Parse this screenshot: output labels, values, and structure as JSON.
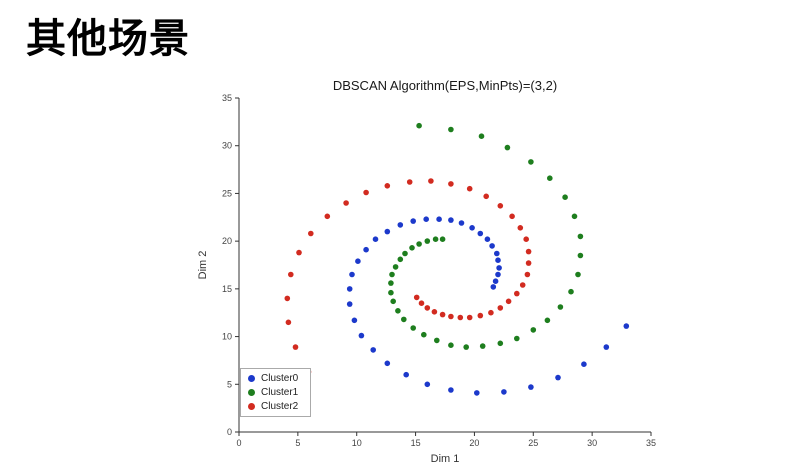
{
  "slide": {
    "title": "其他场景"
  },
  "chart_data": {
    "type": "scatter",
    "title": "DBSCAN Algorithm(EPS,MinPts)=(3,2)",
    "xlabel": "Dim 1",
    "ylabel": "Dim 2",
    "xlim": [
      0,
      35
    ],
    "ylim": [
      0,
      35
    ],
    "x_ticks": [
      0,
      5,
      10,
      15,
      20,
      25,
      30,
      35
    ],
    "y_ticks": [
      0,
      5,
      10,
      15,
      20,
      25,
      30,
      35
    ],
    "grid": false,
    "legend_position": "lower left",
    "series": [
      {
        "name": "Cluster0",
        "color": "#1c39cb",
        "points": [
          [
            21.6,
            15.2
          ],
          [
            21.8,
            15.8
          ],
          [
            22.0,
            16.5
          ],
          [
            22.1,
            17.2
          ],
          [
            22.0,
            18.0
          ],
          [
            21.9,
            18.7
          ],
          [
            21.5,
            19.5
          ],
          [
            21.1,
            20.2
          ],
          [
            20.5,
            20.8
          ],
          [
            19.8,
            21.4
          ],
          [
            18.9,
            21.9
          ],
          [
            18.0,
            22.2
          ],
          [
            17.0,
            22.3
          ],
          [
            15.9,
            22.3
          ],
          [
            14.8,
            22.1
          ],
          [
            13.7,
            21.7
          ],
          [
            12.6,
            21.0
          ],
          [
            11.6,
            20.2
          ],
          [
            10.8,
            19.1
          ],
          [
            10.1,
            17.9
          ],
          [
            9.6,
            16.5
          ],
          [
            9.4,
            15.0
          ],
          [
            9.4,
            13.4
          ],
          [
            9.8,
            11.7
          ],
          [
            10.4,
            10.1
          ],
          [
            11.4,
            8.6
          ],
          [
            12.6,
            7.2
          ],
          [
            14.2,
            6.0
          ],
          [
            16.0,
            5.0
          ],
          [
            18.0,
            4.4
          ],
          [
            20.2,
            4.1
          ],
          [
            22.5,
            4.2
          ],
          [
            24.8,
            4.7
          ],
          [
            27.1,
            5.7
          ],
          [
            29.3,
            7.1
          ],
          [
            31.2,
            8.9
          ],
          [
            32.9,
            11.1
          ]
        ]
      },
      {
        "name": "Cluster1",
        "color": "#1e7e1e",
        "points": [
          [
            17.3,
            20.2
          ],
          [
            16.7,
            20.2
          ],
          [
            16.0,
            20.0
          ],
          [
            15.3,
            19.7
          ],
          [
            14.7,
            19.3
          ],
          [
            14.1,
            18.7
          ],
          [
            13.7,
            18.1
          ],
          [
            13.3,
            17.3
          ],
          [
            13.0,
            16.5
          ],
          [
            12.9,
            15.6
          ],
          [
            12.9,
            14.6
          ],
          [
            13.1,
            13.7
          ],
          [
            13.5,
            12.7
          ],
          [
            14.0,
            11.8
          ],
          [
            14.8,
            10.9
          ],
          [
            15.7,
            10.2
          ],
          [
            16.8,
            9.6
          ],
          [
            18.0,
            9.1
          ],
          [
            19.3,
            8.9
          ],
          [
            20.7,
            9.0
          ],
          [
            22.2,
            9.3
          ],
          [
            23.6,
            9.8
          ],
          [
            25.0,
            10.7
          ],
          [
            26.2,
            11.7
          ],
          [
            27.3,
            13.1
          ],
          [
            28.2,
            14.7
          ],
          [
            28.8,
            16.5
          ],
          [
            29.0,
            18.5
          ],
          [
            29.0,
            20.5
          ],
          [
            28.5,
            22.6
          ],
          [
            27.7,
            24.6
          ],
          [
            26.4,
            26.6
          ],
          [
            24.8,
            28.3
          ],
          [
            22.8,
            29.8
          ],
          [
            20.6,
            31.0
          ],
          [
            18.0,
            31.7
          ],
          [
            15.3,
            32.1
          ]
        ]
      },
      {
        "name": "Cluster2",
        "color": "#d22b20",
        "points": [
          [
            15.1,
            14.1
          ],
          [
            15.5,
            13.5
          ],
          [
            16.0,
            13.0
          ],
          [
            16.6,
            12.6
          ],
          [
            17.3,
            12.3
          ],
          [
            18.0,
            12.1
          ],
          [
            18.8,
            12.0
          ],
          [
            19.6,
            12.0
          ],
          [
            20.5,
            12.2
          ],
          [
            21.4,
            12.5
          ],
          [
            22.2,
            13.0
          ],
          [
            22.9,
            13.7
          ],
          [
            23.6,
            14.5
          ],
          [
            24.1,
            15.4
          ],
          [
            24.5,
            16.5
          ],
          [
            24.6,
            17.7
          ],
          [
            24.6,
            18.9
          ],
          [
            24.4,
            20.2
          ],
          [
            23.9,
            21.4
          ],
          [
            23.2,
            22.6
          ],
          [
            22.2,
            23.7
          ],
          [
            21.0,
            24.7
          ],
          [
            19.6,
            25.5
          ],
          [
            18.0,
            26.0
          ],
          [
            16.3,
            26.3
          ],
          [
            14.5,
            26.2
          ],
          [
            12.6,
            25.8
          ],
          [
            10.8,
            25.1
          ],
          [
            9.1,
            24.0
          ],
          [
            7.5,
            22.6
          ],
          [
            6.1,
            20.8
          ],
          [
            5.1,
            18.8
          ],
          [
            4.4,
            16.5
          ],
          [
            4.1,
            14.0
          ],
          [
            4.2,
            11.5
          ],
          [
            4.8,
            8.9
          ],
          [
            5.9,
            6.3
          ]
        ]
      }
    ]
  }
}
